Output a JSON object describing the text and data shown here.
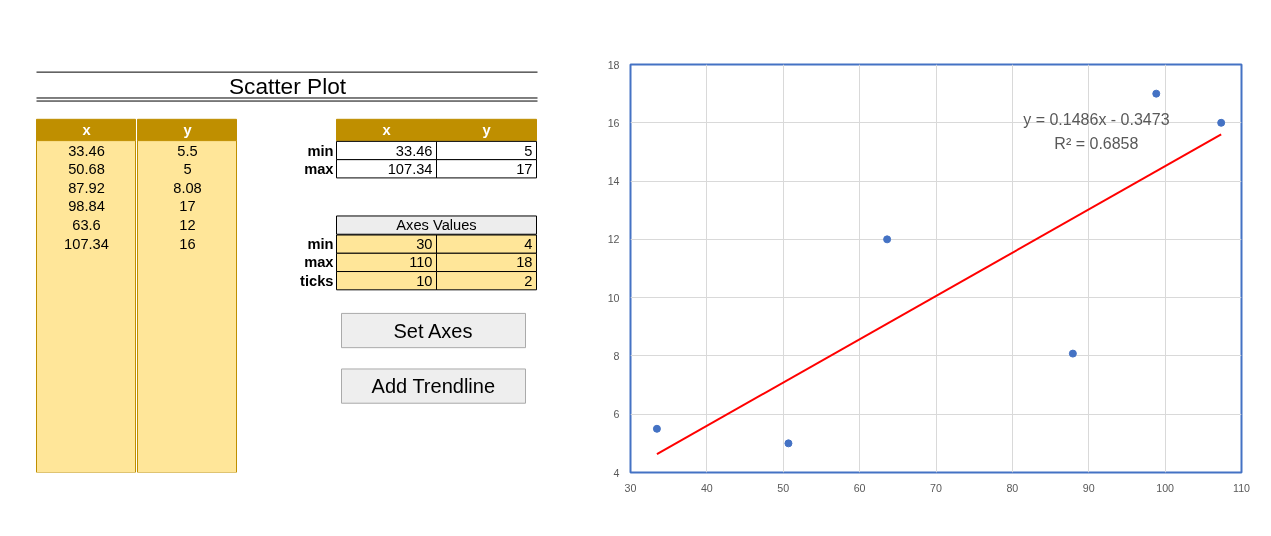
{
  "chart_data": [
    {
      "type": "other",
      "title": "Scatter Plot",
      "annotations": [
        "x",
        "y",
        "33.46",
        "5.5",
        "50.68",
        "5",
        "87.92",
        "8.08",
        "98.84",
        "17",
        "63.6",
        "12",
        "107.34",
        "16",
        "x",
        "y",
        "min",
        "33.46",
        "5",
        "max",
        "107.34",
        "17",
        "Axes Values",
        "min",
        "30",
        "4",
        "max",
        "110",
        "18",
        "ticks",
        "10",
        "2",
        "Set Axes",
        "Add Trendline"
      ]
    },
    {
      "type": "scatter",
      "x": [
        33.46,
        50.68,
        87.92,
        98.84,
        63.6,
        107.34
      ],
      "series": [
        {
          "color": "#4472c4",
          "values": [
            5.5,
            5,
            8.08,
            17,
            12,
            16
          ],
          "marker": "circle"
        },
        {
          "type": "line",
          "color": "#ff0000",
          "x": [
            33.46,
            107.34
          ],
          "values": [
            4.63,
            15.6
          ],
          "marker": "none"
        }
      ],
      "xlim": [
        30,
        110
      ],
      "xticks": [
        30,
        40,
        50,
        60,
        70,
        80,
        90,
        100,
        110
      ],
      "ylim": [
        4,
        18
      ],
      "yticks": [
        4,
        6,
        8,
        10,
        12,
        14,
        16,
        18
      ],
      "grid": true,
      "annotations": [
        "y = 0.1486x - 0.3473",
        "R² = 0.6858"
      ]
    }
  ]
}
